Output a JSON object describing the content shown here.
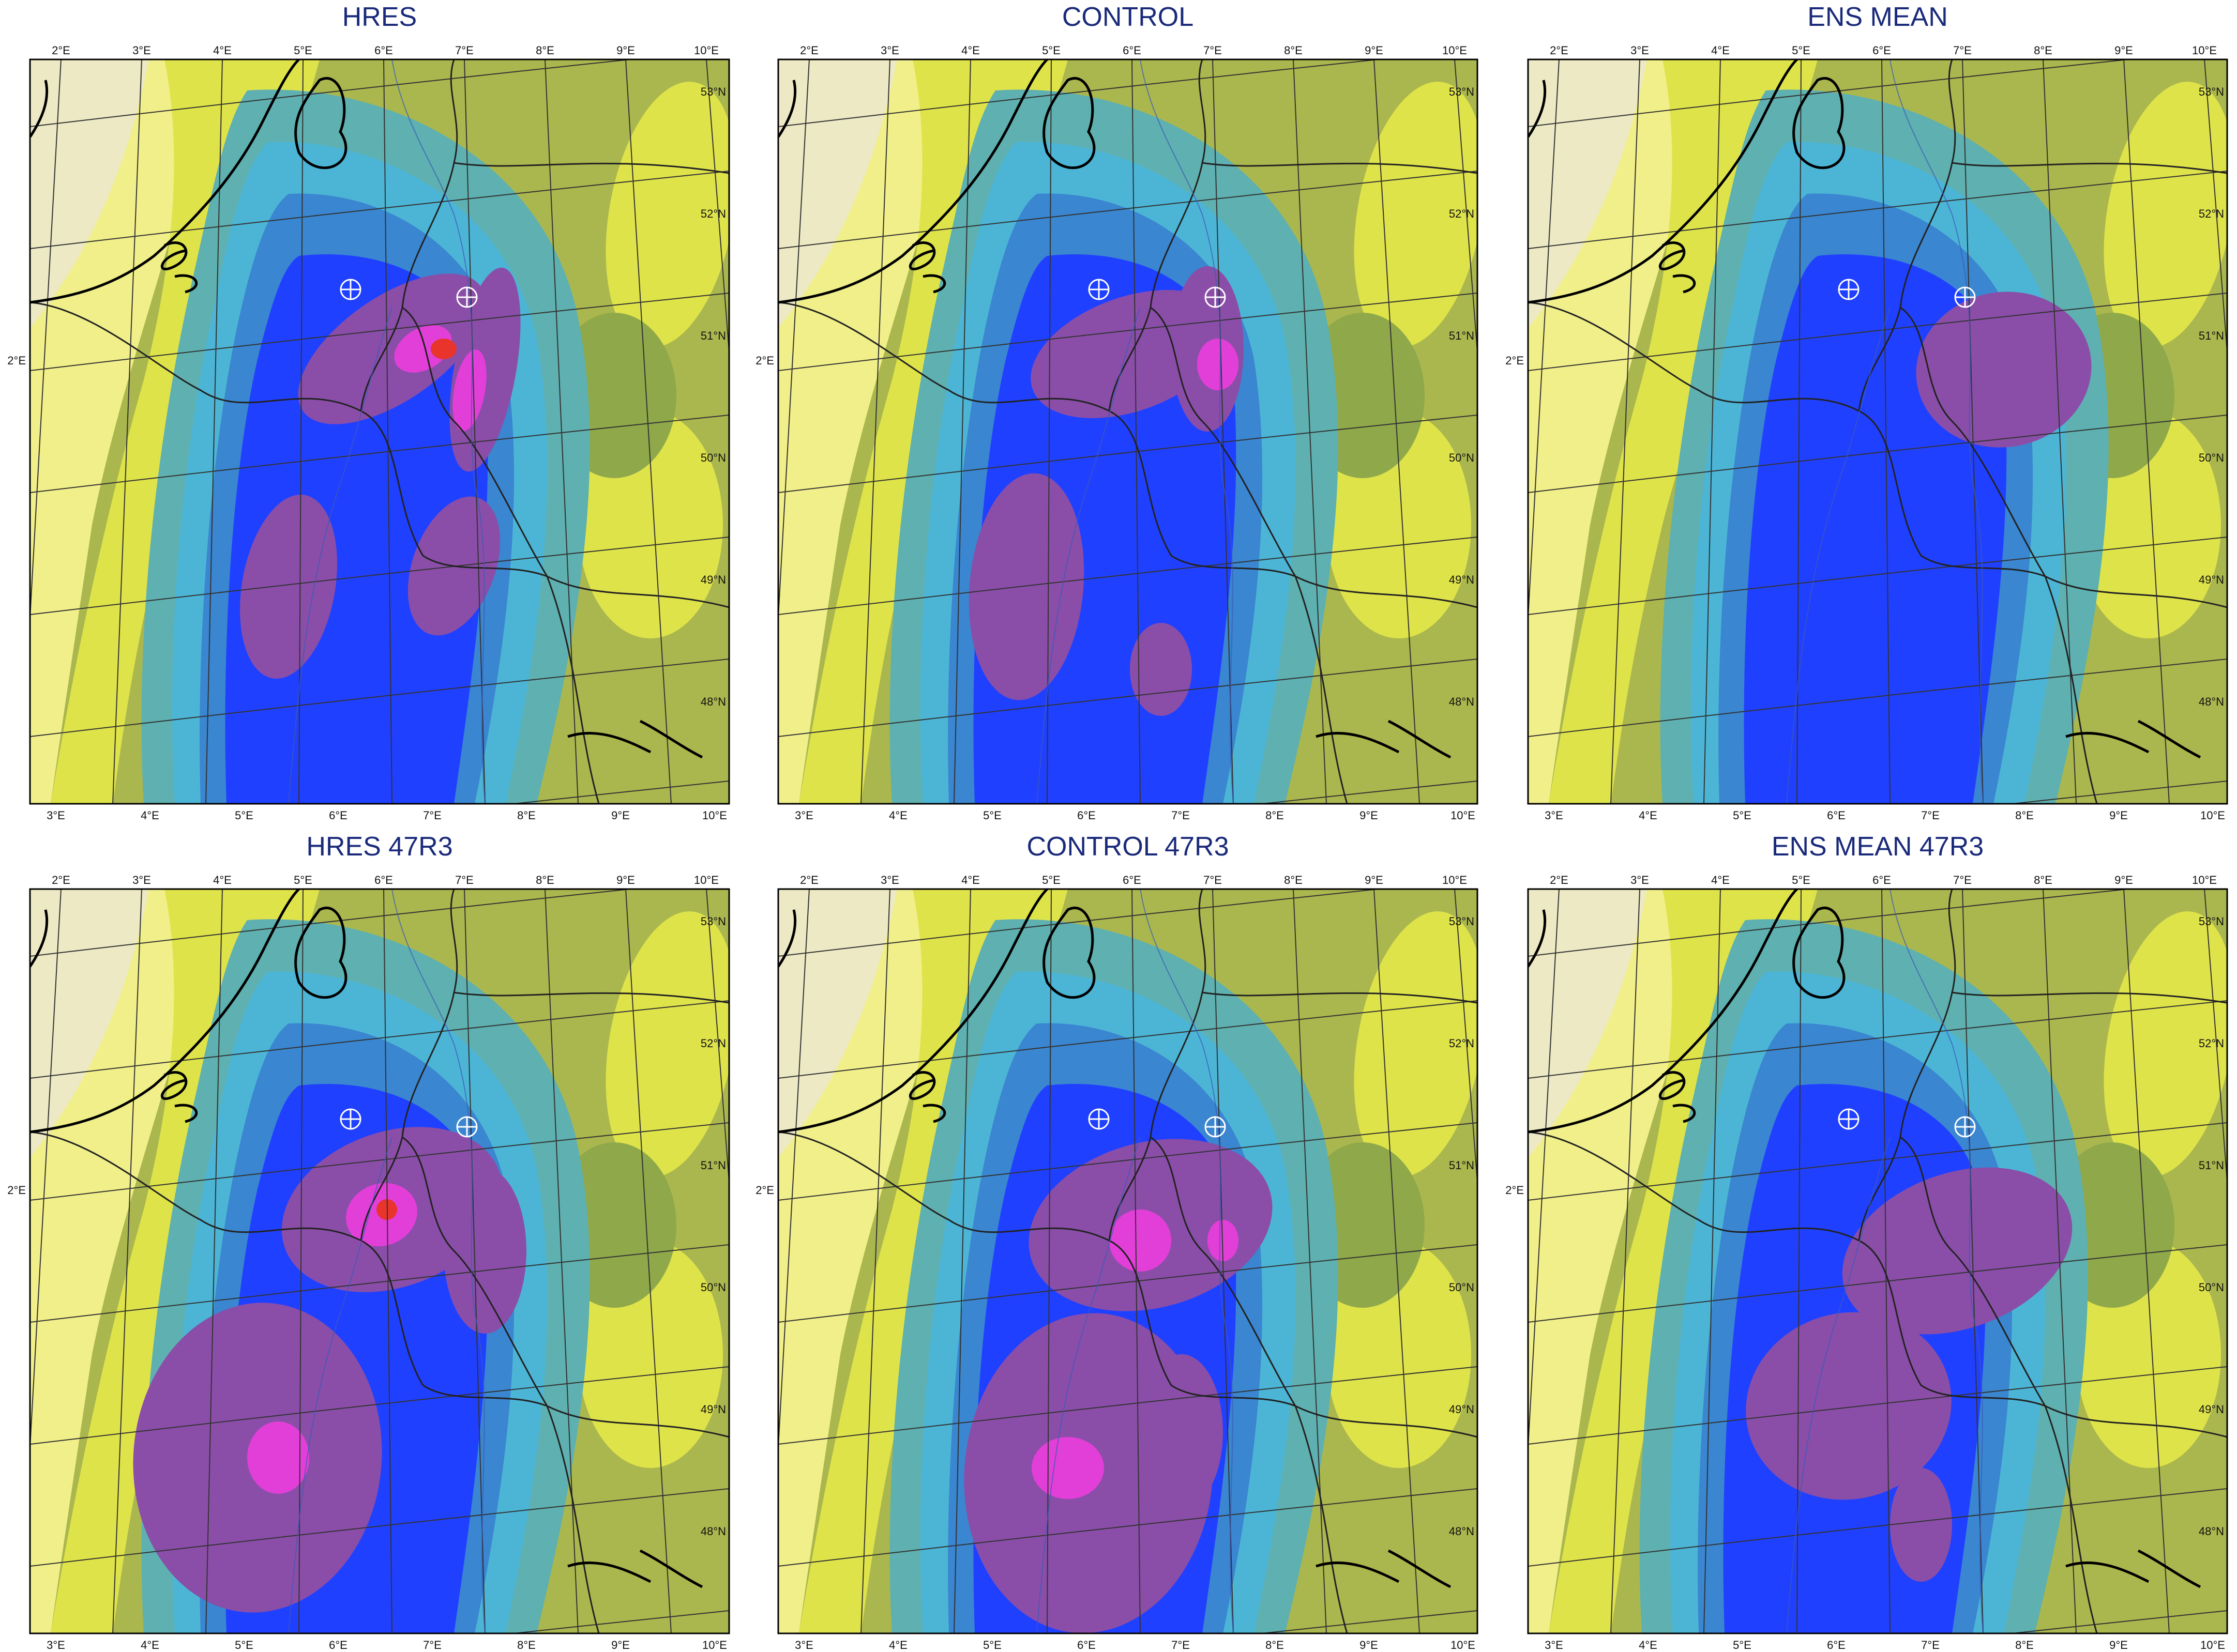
{
  "figure": {
    "panels": [
      {
        "title": "HRES",
        "lon_top": [
          "2°E",
          "3°E",
          "4°E",
          "5°E",
          "6°E",
          "7°E",
          "8°E",
          "9°E",
          "10°E"
        ],
        "lon_bottom": [
          "3°E",
          "4°E",
          "5°E",
          "6°E",
          "7°E",
          "8°E",
          "9°E",
          "10°E"
        ],
        "lat_right": [
          "53°N",
          "52°N",
          "51°N",
          "50°N",
          "49°N",
          "48°N"
        ],
        "lat_left": "2°E",
        "markers": 2
      },
      {
        "title": "CONTROL",
        "lon_top": [
          "2°E",
          "3°E",
          "4°E",
          "5°E",
          "6°E",
          "7°E",
          "8°E",
          "9°E",
          "10°E"
        ],
        "lon_bottom": [
          "3°E",
          "4°E",
          "5°E",
          "6°E",
          "7°E",
          "8°E",
          "9°E",
          "10°E"
        ],
        "lat_right": [
          "53°N",
          "52°N",
          "51°N",
          "50°N",
          "49°N",
          "48°N"
        ],
        "lat_left": "2°E",
        "markers": 2
      },
      {
        "title": "ENS MEAN",
        "lon_top": [
          "2°E",
          "3°E",
          "4°E",
          "5°E",
          "6°E",
          "7°E",
          "8°E",
          "9°E",
          "10°E"
        ],
        "lon_bottom": [
          "3°E",
          "4°E",
          "5°E",
          "6°E",
          "7°E",
          "8°E",
          "9°E",
          "10°E"
        ],
        "lat_right": [
          "53°N",
          "52°N",
          "51°N",
          "50°N",
          "49°N",
          "48°N"
        ],
        "lat_left": "2°E",
        "markers": 2
      },
      {
        "title": "HRES 47R3",
        "lon_top": [
          "2°E",
          "3°E",
          "4°E",
          "5°E",
          "6°E",
          "7°E",
          "8°E",
          "9°E",
          "10°E"
        ],
        "lon_bottom": [
          "3°E",
          "4°E",
          "5°E",
          "6°E",
          "7°E",
          "8°E",
          "9°E",
          "10°E"
        ],
        "lat_right": [
          "53°N",
          "52°N",
          "51°N",
          "50°N",
          "49°N",
          "48°N"
        ],
        "lat_left": "2°E",
        "markers": 2
      },
      {
        "title": "CONTROL 47R3",
        "lon_top": [
          "2°E",
          "3°E",
          "4°E",
          "5°E",
          "6°E",
          "7°E",
          "8°E",
          "9°E",
          "10°E"
        ],
        "lon_bottom": [
          "3°E",
          "4°E",
          "5°E",
          "6°E",
          "7°E",
          "8°E",
          "9°E",
          "10°E"
        ],
        "lat_right": [
          "53°N",
          "52°N",
          "51°N",
          "50°N",
          "49°N",
          "48°N"
        ],
        "lat_left": "2°E",
        "markers": 2
      },
      {
        "title": "ENS MEAN 47R3",
        "lon_top": [
          "2°E",
          "3°E",
          "4°E",
          "5°E",
          "6°E",
          "7°E",
          "8°E",
          "9°E",
          "10°E"
        ],
        "lon_bottom": [
          "3°E",
          "4°E",
          "5°E",
          "6°E",
          "7°E",
          "8°E",
          "9°E",
          "10°E"
        ],
        "lat_right": [
          "53°N",
          "52°N",
          "51°N",
          "50°N",
          "49°N",
          "48°N"
        ],
        "lat_left": "2°E",
        "markers": 2
      }
    ],
    "colors": {
      "land_beige": "#ece9c4",
      "light_yellow": "#f1ef8a",
      "yellow": "#dfe34a",
      "olive": "#aab74e",
      "green_olive": "#8fa84a",
      "teal_light": "#5fb0b0",
      "cyan": "#4cb5d6",
      "mid_blue": "#3a86d0",
      "blue": "#2040ff",
      "purple": "#8a4ea8",
      "magenta": "#e23fd8",
      "red": "#e8342a",
      "coast": "#000000",
      "border": "#222222",
      "grid": "#333333",
      "title": "#1a2a7a"
    }
  }
}
